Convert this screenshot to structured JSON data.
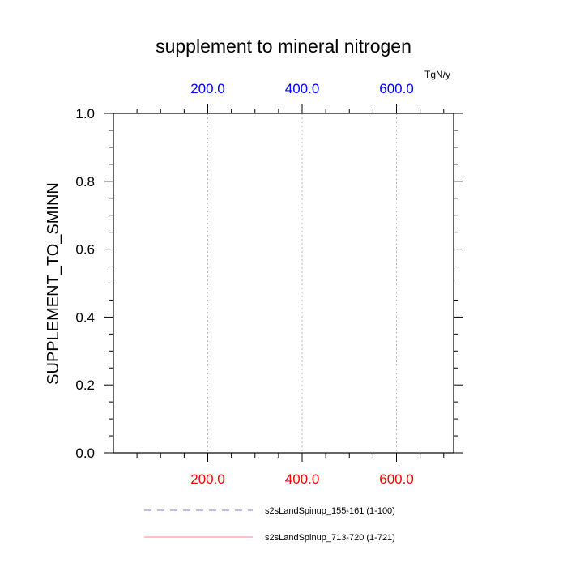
{
  "chart_data": {
    "type": "line",
    "title": "supplement to mineral nitrogen",
    "ylabel": "SUPPLEMENT_TO_SMINN",
    "top_axis_unit": "TgN/y",
    "xlim": [
      0,
      721
    ],
    "ylim": [
      0,
      1.0
    ],
    "x_ticks": [
      "200.0",
      "400.0",
      "600.0"
    ],
    "x_tick_values": [
      200,
      400,
      600
    ],
    "y_ticks": [
      "0.0",
      "0.2",
      "0.4",
      "0.6",
      "0.8",
      "1.0"
    ],
    "y_tick_values": [
      0,
      0.2,
      0.4,
      0.6,
      0.8,
      1.0
    ],
    "grid": "vertical-dotted",
    "legend_position": "bottom",
    "colors": {
      "bottom_axis_labels": "#ff0000",
      "top_axis_labels": "#0000ff"
    },
    "series": [
      {
        "name": "s2sLandSpinup_155-161 (1-100)",
        "color": "#7777dd",
        "dash": "dashed",
        "x": [
          1,
          100
        ],
        "y": [
          0,
          0
        ]
      },
      {
        "name": "s2sLandSpinup_713-720 (1-721)",
        "color": "#ff8080",
        "dash": "solid",
        "x": [
          1,
          721
        ],
        "y": [
          0,
          0
        ]
      }
    ]
  }
}
